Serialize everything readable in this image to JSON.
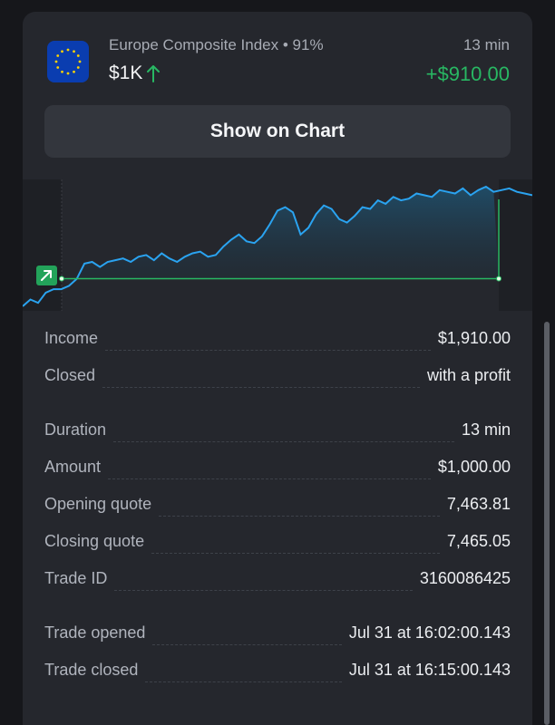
{
  "trade": {
    "asset_name": "Europe Composite Index",
    "payout": "91%",
    "amount_short": "$1K",
    "direction_icon": "arrow-up-icon",
    "duration_short": "13 min",
    "profit": "+$910.00",
    "flag_icon": "eu-flag-icon"
  },
  "actions": {
    "show_chart_label": "Show on Chart"
  },
  "colors": {
    "accent_green": "#28b863",
    "line_blue": "#2aa3f0",
    "card_bg": "#25272d",
    "page_bg": "#16171b"
  },
  "chart_data": {
    "type": "area",
    "xlabel": "",
    "ylabel": "",
    "grid": false,
    "open_marker_icon": "arrow-up-right-icon",
    "values": [
      7463.0,
      7463.2,
      7463.1,
      7463.4,
      7463.5,
      7463.5,
      7463.6,
      7463.8,
      7464.25,
      7464.3,
      7464.15,
      7464.3,
      7464.35,
      7464.4,
      7464.3,
      7464.45,
      7464.5,
      7464.35,
      7464.55,
      7464.4,
      7464.3,
      7464.45,
      7464.55,
      7464.6,
      7464.45,
      7464.5,
      7464.75,
      7464.95,
      7465.1,
      7464.9,
      7464.85,
      7465.05,
      7465.4,
      7465.8,
      7465.9,
      7465.75,
      7465.1,
      7465.3,
      7465.7,
      7465.95,
      7465.85,
      7465.55,
      7465.45,
      7465.65,
      7465.9,
      7465.85,
      7466.1,
      7466.0,
      7466.2,
      7466.1,
      7466.15,
      7466.3,
      7466.25,
      7466.2,
      7466.4,
      7466.35,
      7466.3,
      7466.45,
      7466.25,
      7466.4,
      7466.5,
      7466.35,
      7466.4,
      7466.45,
      7466.35,
      7466.3,
      7466.25
    ],
    "open_quote": 7463.81,
    "close_quote": 7465.05
  },
  "details": {
    "rows": [
      {
        "label": "Income",
        "value": "$1,910.00"
      },
      {
        "label": "Closed",
        "value": "with a profit"
      },
      {
        "label": "Duration",
        "value": "13 min"
      },
      {
        "label": "Amount",
        "value": "$1,000.00"
      },
      {
        "label": "Opening quote",
        "value": "7,463.81"
      },
      {
        "label": "Closing quote",
        "value": "7,465.05"
      },
      {
        "label": "Trade ID",
        "value": "3160086425"
      },
      {
        "label": "Trade opened",
        "value": "Jul 31 at 16:02:00.143"
      },
      {
        "label": "Trade closed",
        "value": "Jul 31 at 16:15:00.143"
      }
    ]
  }
}
